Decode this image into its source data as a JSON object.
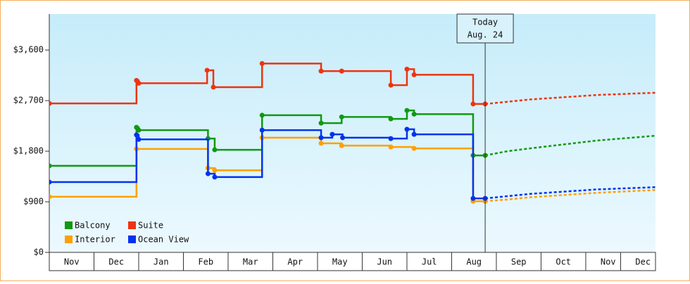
{
  "chart_data": {
    "type": "line",
    "step": "post",
    "xlim": [
      0,
      13.56
    ],
    "ylim": [
      0,
      4240
    ],
    "xticks": [
      {
        "value": 0.5,
        "label": "Nov"
      },
      {
        "value": 1.5,
        "label": "Dec"
      },
      {
        "value": 2.5,
        "label": "Jan"
      },
      {
        "value": 3.5,
        "label": "Feb"
      },
      {
        "value": 4.5,
        "label": "Mar"
      },
      {
        "value": 5.5,
        "label": "Apr"
      },
      {
        "value": 6.5,
        "label": "May"
      },
      {
        "value": 7.5,
        "label": "Jun"
      },
      {
        "value": 8.5,
        "label": "Jul"
      },
      {
        "value": 9.5,
        "label": "Aug"
      },
      {
        "value": 10.5,
        "label": "Sep"
      },
      {
        "value": 11.5,
        "label": "Oct"
      },
      {
        "value": 12.5,
        "label": "Nov"
      },
      {
        "value": 13.28,
        "label": "Dec"
      }
    ],
    "yticks": [
      {
        "value": 0,
        "label": "$0"
      },
      {
        "value": 900,
        "label": "$900"
      },
      {
        "value": 1800,
        "label": "$1,800"
      },
      {
        "value": 2700,
        "label": "$2,700"
      },
      {
        "value": 3600,
        "label": "$3,600"
      }
    ],
    "today": {
      "x": 9.75,
      "label": [
        "Today",
        "Aug. 24"
      ]
    },
    "legend": "lower left",
    "series": [
      {
        "name": "Balcony",
        "color": "#119911",
        "x": [
          0,
          1.95,
          2.0,
          3.55,
          3.7,
          4.76,
          6.08,
          6.54,
          7.64,
          8.0,
          8.16,
          9.48,
          9.75
        ],
        "values": [
          1540,
          2225,
          2175,
          2025,
          1825,
          2440,
          2300,
          2410,
          2375,
          2525,
          2460,
          1725,
          1725
        ],
        "forecast": {
          "x": [
            9.75,
            10.25,
            10.75,
            11.5,
            12.25,
            13.56
          ],
          "values": [
            1725,
            1800,
            1850,
            1920,
            1990,
            2075
          ]
        }
      },
      {
        "name": "Suite",
        "color": "#ee3311",
        "x": [
          0,
          1.95,
          2.0,
          3.53,
          3.67,
          4.76,
          6.08,
          6.54,
          7.64,
          8.0,
          8.16,
          9.48,
          9.75
        ],
        "values": [
          2650,
          3060,
          3010,
          3240,
          2940,
          3360,
          3225,
          3225,
          2975,
          3260,
          3160,
          2640,
          2640
        ],
        "forecast": {
          "x": [
            9.75,
            10.25,
            10.75,
            11.5,
            12.25,
            13.56
          ],
          "values": [
            2640,
            2680,
            2720,
            2760,
            2800,
            2840
          ]
        }
      },
      {
        "name": "Interior",
        "color": "#ffa000",
        "x": [
          0,
          1.95,
          3.55,
          3.7,
          4.76,
          6.08,
          6.54,
          7.64,
          8.16,
          9.48,
          9.75
        ],
        "values": [
          990,
          1840,
          1500,
          1460,
          2040,
          1940,
          1900,
          1875,
          1850,
          910,
          910
        ],
        "forecast": {
          "x": [
            9.75,
            10.25,
            10.75,
            11.5,
            12.25,
            13.56
          ],
          "values": [
            910,
            940,
            980,
            1020,
            1060,
            1110
          ]
        }
      },
      {
        "name": "Ocean View",
        "color": "#0033ee",
        "x": [
          0,
          1.95,
          2.0,
          3.55,
          3.7,
          4.76,
          6.08,
          6.33,
          6.56,
          7.64,
          8.0,
          8.16,
          9.48,
          9.75
        ],
        "values": [
          1250,
          2090,
          2010,
          1400,
          1340,
          2175,
          2040,
          2100,
          2040,
          2025,
          2190,
          2100,
          960,
          960
        ],
        "forecast": {
          "x": [
            9.75,
            10.25,
            10.75,
            11.5,
            12.25,
            13.56
          ],
          "values": [
            960,
            1000,
            1040,
            1080,
            1120,
            1160
          ]
        }
      }
    ]
  }
}
